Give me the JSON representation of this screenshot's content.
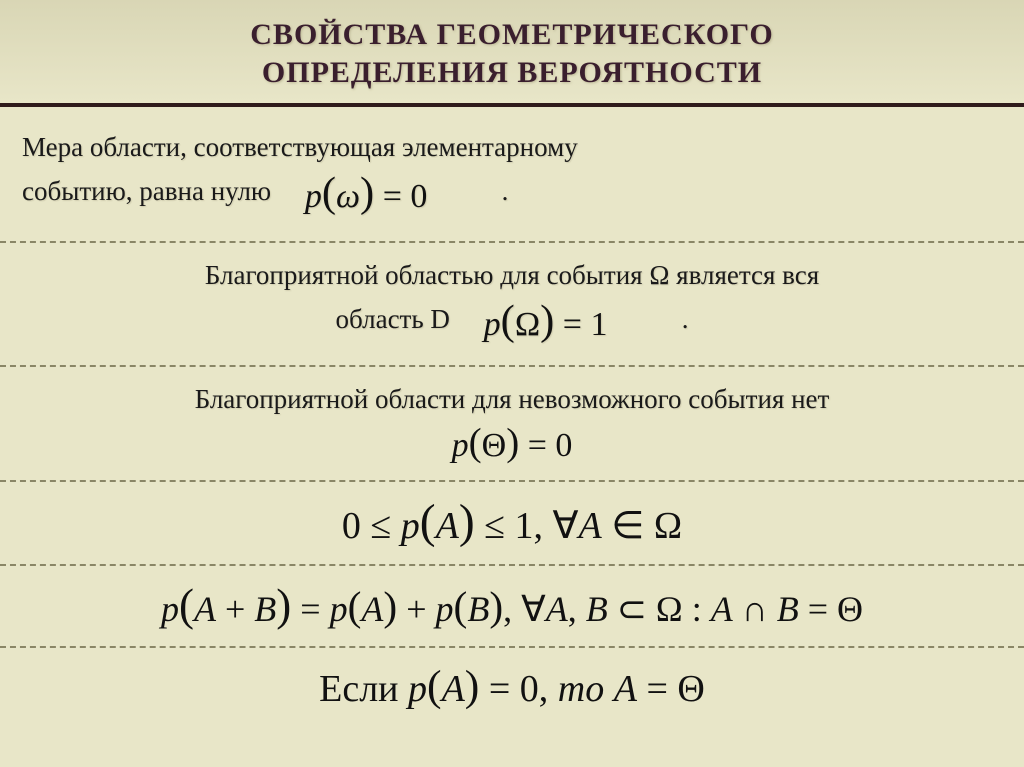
{
  "colors": {
    "background": "#e8e6c8",
    "title_bar_gradient_top": "#d9d6b5",
    "title_text": "#3a1f2e",
    "rule_dark": "#2f1b1b",
    "divider": "#8a8666",
    "body_text": "#1a1a1a"
  },
  "typography": {
    "title_fontsize": 30,
    "body_fontsize": 27,
    "formula_fontsize": 34,
    "formula_big_fontsize": 38,
    "font_family_body": "Georgia, Times New Roman, serif",
    "font_family_formula": "Times New Roman, serif"
  },
  "title_line1": "СВОЙСТВА ГЕОМЕТРИЧЕСКОГО",
  "title_line2": "ОПРЕДЕЛЕНИЯ ВЕРОЯТНОСТИ",
  "section1": {
    "text_line1": "Мера области, соответствующая элементарному",
    "text_line2_prefix": "событию, равна нулю",
    "formula_p": "p",
    "formula_lparen": "(",
    "formula_omega": "ω",
    "formula_rparen": ")",
    "formula_eq": " = ",
    "formula_zero": "0",
    "period": "."
  },
  "section2": {
    "text_line1": "Благоприятной областью для события Ω является вся",
    "text_line2_prefix": "область D",
    "formula_p": "p",
    "formula_lparen": "(",
    "formula_Omega": "Ω",
    "formula_rparen": ")",
    "formula_eq": " = ",
    "formula_one": "1",
    "period": "."
  },
  "section3": {
    "text_line1": "Благоприятной области для невозможного события нет",
    "formula_p": "p",
    "formula_lparen": "(",
    "formula_Theta": "Θ",
    "formula_rparen": ")",
    "formula_eq": " = ",
    "formula_zero": "0"
  },
  "section4": {
    "zero": "0",
    "le1": " ≤ ",
    "p": "p",
    "lparen": "(",
    "A": "A",
    "rparen": ")",
    "le2": " ≤ ",
    "one": "1",
    "comma_sp": ",   ",
    "forall": "∀",
    "A2": "A",
    "in": " ∈ ",
    "Omega": "Ω"
  },
  "section5": {
    "p1": "p",
    "lparen1": "(",
    "A": "A",
    "plus": " + ",
    "B": "B",
    "rparen1": ")",
    "eq1": " = ",
    "p2": "p",
    "lparen2": "(",
    "A2": "A",
    "rparen2": ")",
    "plus2": " + ",
    "p3": "p",
    "lparen3": "(",
    "B2": "B",
    "rparen3": ")",
    "comma_sp": ",   ",
    "forall": "∀",
    "A3": "A",
    "comma2": ", ",
    "B3": "B",
    "subset": " ⊂ ",
    "Omega": "Ω",
    "colon": " :   ",
    "A4": "A",
    "cap": " ∩ ",
    "B4": "B",
    "eq2": " = ",
    "Theta": "Θ"
  },
  "section6": {
    "if": "Если   ",
    "p": "p",
    "lparen": "(",
    "A": "A",
    "rparen": ")",
    "eq1": " = ",
    "zero": "0",
    "comma": ",   ",
    "to": "то   ",
    "A2": "A",
    "eq2": " = ",
    "Theta": "Θ"
  }
}
